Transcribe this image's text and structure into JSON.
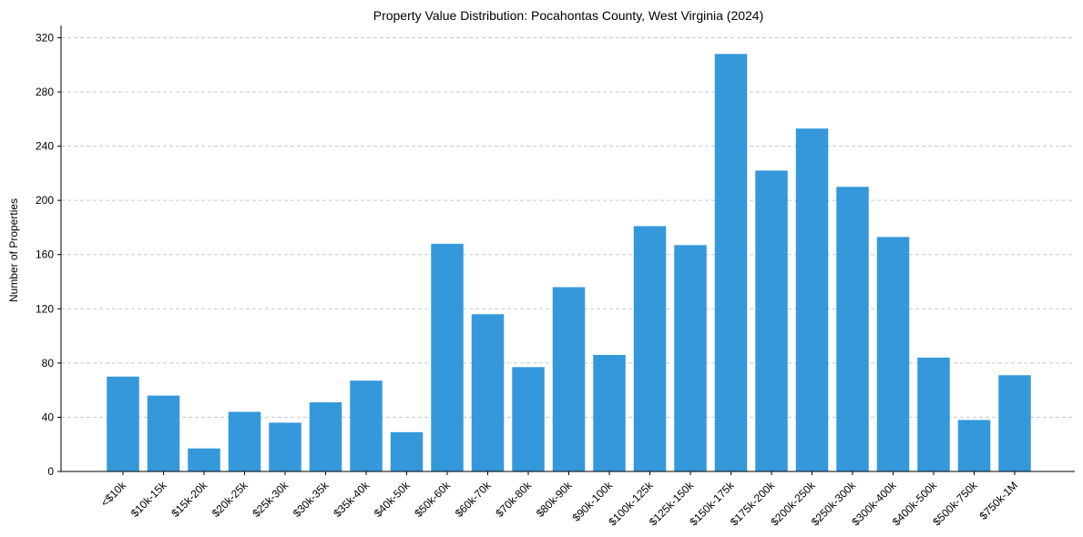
{
  "chart_data": {
    "type": "bar",
    "title": "Property Value Distribution: Pocahontas County, West Virginia (2024)",
    "xlabel": "",
    "ylabel": "Number of Properties",
    "ylim": [
      0,
      325
    ],
    "yticks": [
      0,
      40,
      80,
      120,
      160,
      200,
      240,
      280,
      320
    ],
    "grid": "y-dashed",
    "bar_color": "#3498db",
    "categories": [
      "<$10k",
      "$10k-15k",
      "$15k-20k",
      "$20k-25k",
      "$25k-30k",
      "$30k-35k",
      "$35k-40k",
      "$40k-50k",
      "$50k-60k",
      "$60k-70k",
      "$70k-80k",
      "$80k-90k",
      "$90k-100k",
      "$100k-125k",
      "$125k-150k",
      "$150k-175k",
      "$175k-200k",
      "$200k-250k",
      "$250k-300k",
      "$300k-400k",
      "$400k-500k",
      "$500k-750k",
      "$750k-1M"
    ],
    "values": [
      70,
      56,
      17,
      44,
      36,
      51,
      67,
      29,
      168,
      116,
      77,
      136,
      86,
      181,
      167,
      308,
      222,
      253,
      210,
      173,
      84,
      38,
      71
    ]
  }
}
